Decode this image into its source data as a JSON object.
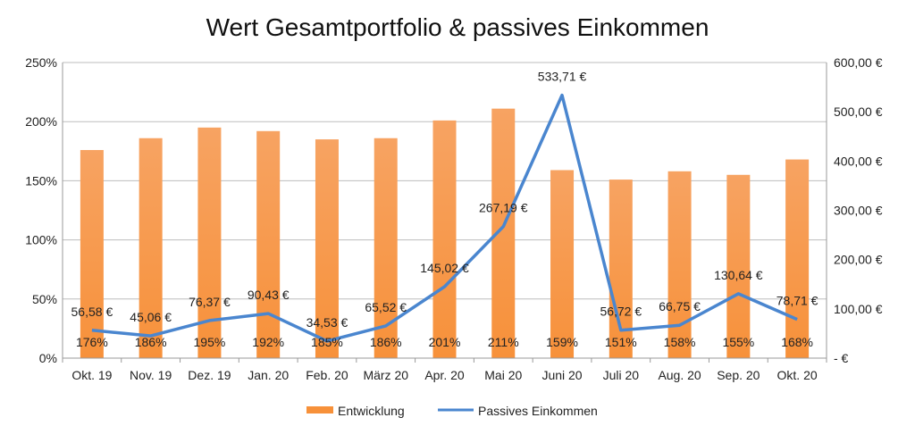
{
  "chart_data": {
    "type": "bar+line",
    "title": "Wert Gesamtportfolio & passives Einkommen",
    "categories": [
      "Okt. 19",
      "Nov. 19",
      "Dez. 19",
      "Jan. 20",
      "Feb. 20",
      "März 20",
      "Apr. 20",
      "Mai 20",
      "Juni 20",
      "Juli 20",
      "Aug. 20",
      "Sep. 20",
      "Okt. 20"
    ],
    "series": [
      {
        "name": "Entwicklung",
        "type": "bar",
        "axis": "left",
        "color": "#f7913a",
        "values": [
          176,
          186,
          195,
          192,
          185,
          186,
          201,
          211,
          159,
          151,
          158,
          155,
          168
        ],
        "labels": [
          "176%",
          "186%",
          "195%",
          "192%",
          "185%",
          "186%",
          "201%",
          "211%",
          "159%",
          "151%",
          "158%",
          "155%",
          "168%"
        ]
      },
      {
        "name": "Passives Einkommen",
        "type": "line",
        "axis": "right",
        "color": "#4a86cf",
        "values": [
          56.58,
          45.06,
          76.37,
          90.43,
          34.53,
          65.52,
          145.02,
          267.19,
          533.71,
          56.72,
          66.75,
          130.64,
          78.71
        ],
        "labels": [
          "56,58 €",
          "45,06 €",
          "76,37 €",
          "90,43 €",
          "34,53 €",
          "65,52 €",
          "145,02 €",
          "267,19 €",
          "533,71 €",
          "56,72 €",
          "66,75 €",
          "130,64 €",
          "78,71 €"
        ]
      }
    ],
    "y_left": {
      "range": [
        0,
        250
      ],
      "ticks": [
        "0%",
        "50%",
        "100%",
        "150%",
        "200%",
        "250%"
      ]
    },
    "y_right": {
      "range": [
        0,
        600
      ],
      "ticks": [
        "-  €",
        "100,00 €",
        "200,00 €",
        "300,00 €",
        "400,00 €",
        "500,00 €",
        "600,00 €"
      ]
    },
    "grid": true,
    "legend_position": "bottom"
  }
}
